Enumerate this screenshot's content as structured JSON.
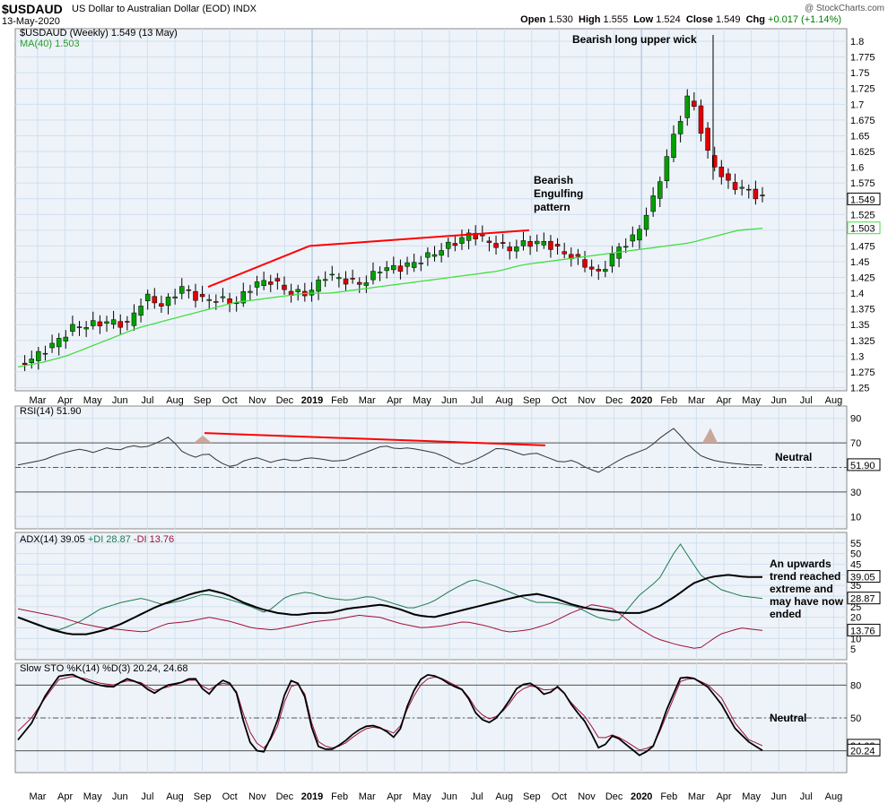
{
  "header": {
    "symbol": "$USDAUD",
    "description": "US Dollar to Australian Dollar (EOD)  INDX",
    "date": "13-May-2020",
    "open_label": "Open",
    "open": "1.530",
    "high_label": "High",
    "high": "1.555",
    "low_label": "Low",
    "low": "1.524",
    "close_label": "Close",
    "close": "1.549",
    "chg_label": "Chg",
    "chg": "+0.017 (+1.14%)",
    "logo": "@ StockCharts.com"
  },
  "chart_data": [
    {
      "type": "candlestick",
      "legend": [
        "$USDAUD (Weekly) 1.549 (13 May)",
        "MA(40) 1.503"
      ],
      "ylim": [
        1.245,
        1.82
      ],
      "yticks": [
        1.25,
        1.275,
        1.3,
        1.325,
        1.35,
        1.375,
        1.4,
        1.425,
        1.45,
        1.475,
        1.5,
        1.525,
        1.55,
        1.575,
        1.6,
        1.625,
        1.65,
        1.675,
        1.7,
        1.725,
        1.75,
        1.775,
        1.8
      ],
      "price_badge": "1.549",
      "ma_badge": "1.503",
      "annotations": [
        "Bearish long upper wick",
        "Bearish",
        "Engulfing",
        "pattern"
      ],
      "close_path": [
        1.285,
        1.3,
        1.32,
        1.345,
        1.35,
        1.355,
        1.35,
        1.395,
        1.38,
        1.41,
        1.39,
        1.39,
        1.385,
        1.415,
        1.42,
        1.4,
        1.4,
        1.43,
        1.42,
        1.415,
        1.44,
        1.44,
        1.45,
        1.465,
        1.48,
        1.495,
        1.48,
        1.47,
        1.48,
        1.48,
        1.465,
        1.45,
        1.43,
        1.47,
        1.49,
        1.55,
        1.64,
        1.72,
        1.62,
        1.575,
        1.565,
        1.55
      ],
      "ma_path": [
        1.283,
        1.29,
        1.3,
        1.315,
        1.33,
        1.345,
        1.355,
        1.365,
        1.375,
        1.385,
        1.39,
        1.395,
        1.4,
        1.4,
        1.405,
        1.41,
        1.415,
        1.42,
        1.425,
        1.43,
        1.435,
        1.445,
        1.45,
        1.455,
        1.46,
        1.465,
        1.47,
        1.475,
        1.48,
        1.49,
        1.5,
        1.503
      ]
    },
    {
      "type": "line",
      "legend": "RSI(14) 51.90",
      "ylim": [
        0,
        100
      ],
      "yticks": [
        10,
        30,
        50,
        70,
        90
      ],
      "badge": "51.90",
      "annotation": "Neutral",
      "values": [
        52,
        54,
        56,
        60,
        63,
        65,
        62,
        66,
        64,
        68,
        66,
        70,
        75,
        63,
        58,
        62,
        54,
        50,
        56,
        58,
        54,
        57,
        55,
        58,
        57,
        55,
        56,
        60,
        64,
        68,
        65,
        66,
        64,
        62,
        58,
        52,
        55,
        60,
        66,
        64,
        60,
        62,
        58,
        54,
        56,
        50,
        46,
        52,
        58,
        62,
        66,
        75,
        82,
        70,
        60,
        56,
        54,
        53,
        52,
        52
      ]
    },
    {
      "type": "line",
      "legend": [
        "ADX(14) 39.05",
        "+DI 28.87",
        "-DI 13.76"
      ],
      "ylim": [
        0,
        60
      ],
      "yticks": [
        5,
        10,
        15,
        20,
        25,
        30,
        35,
        40,
        45,
        50,
        55
      ],
      "badges": [
        "39.05",
        "28.87",
        "13.76"
      ],
      "annotation": [
        "An upwards",
        "trend reached",
        "extreme and",
        "may have now",
        "ended"
      ],
      "adx": [
        20,
        17,
        14,
        12,
        12,
        14,
        17,
        21,
        25,
        28,
        31,
        33,
        31,
        27,
        24,
        22,
        21,
        22,
        22,
        24,
        25,
        26,
        24,
        21,
        20,
        22,
        24,
        26,
        28,
        30,
        31,
        29,
        26,
        24,
        23,
        22,
        22,
        25,
        30,
        36,
        39,
        40,
        39,
        39
      ],
      "plus_di": [
        20,
        16,
        14,
        18,
        24,
        27,
        29,
        26,
        28,
        31,
        29,
        26,
        22,
        30,
        32,
        29,
        28,
        30,
        27,
        24,
        27,
        33,
        38,
        35,
        31,
        27,
        27,
        25,
        20,
        18,
        30,
        38,
        55,
        40,
        33,
        30,
        28.87
      ],
      "minus_di": [
        24,
        22,
        20,
        17,
        15,
        14,
        13,
        17,
        18,
        20,
        18,
        15,
        14,
        16,
        18,
        19,
        21,
        20,
        17,
        15,
        16,
        18,
        16,
        13,
        14,
        17,
        22,
        26,
        24,
        16,
        10,
        7,
        5,
        12,
        15,
        13.76
      ]
    },
    {
      "type": "line",
      "legend": "Slow STO %K(14) %D(3) 20.24, 24.68",
      "ylim": [
        0,
        100
      ],
      "yticks": [
        20,
        50,
        80
      ],
      "badges": [
        "24.68",
        "20.24"
      ],
      "annotation": "Neutral",
      "k": [
        30,
        45,
        70,
        88,
        90,
        84,
        80,
        78,
        86,
        82,
        72,
        80,
        82,
        88,
        70,
        85,
        80,
        30,
        15,
        40,
        85,
        80,
        25,
        20,
        27,
        38,
        44,
        40,
        30,
        70,
        90,
        88,
        80,
        75,
        50,
        45,
        60,
        80,
        82,
        70,
        80,
        60,
        45,
        20,
        35,
        25,
        15,
        25,
        60,
        88,
        86,
        78,
        62,
        40,
        28,
        20.24
      ],
      "d": [
        38,
        50,
        68,
        85,
        88,
        86,
        82,
        80,
        84,
        83,
        75,
        78,
        82,
        86,
        75,
        82,
        80,
        40,
        20,
        35,
        78,
        82,
        30,
        22,
        25,
        35,
        42,
        40,
        35,
        65,
        85,
        88,
        82,
        75,
        55,
        48,
        58,
        75,
        80,
        75,
        78,
        62,
        50,
        30,
        35,
        28,
        20,
        25,
        55,
        85,
        86,
        80,
        68,
        45,
        30,
        24.68
      ]
    }
  ],
  "x_axis": {
    "months": [
      "Mar",
      "Apr",
      "May",
      "Jun",
      "Jul",
      "Aug",
      "Sep",
      "Oct",
      "Nov",
      "Dec",
      "2019",
      "Feb",
      "Mar",
      "Apr",
      "May",
      "Jun",
      "Jul",
      "Aug",
      "Sep",
      "Oct",
      "Nov",
      "Dec",
      "2020",
      "Feb",
      "Mar",
      "Apr",
      "May",
      "Jun",
      "Jul",
      "Aug"
    ]
  },
  "colors": {
    "grid": "#cfe0ef",
    "up": "#00a000",
    "down": "#e00000",
    "ma": "#44dd44",
    "trend": "#ff0000",
    "plus_di": "#1e7a50",
    "minus_di": "#a0103a"
  }
}
